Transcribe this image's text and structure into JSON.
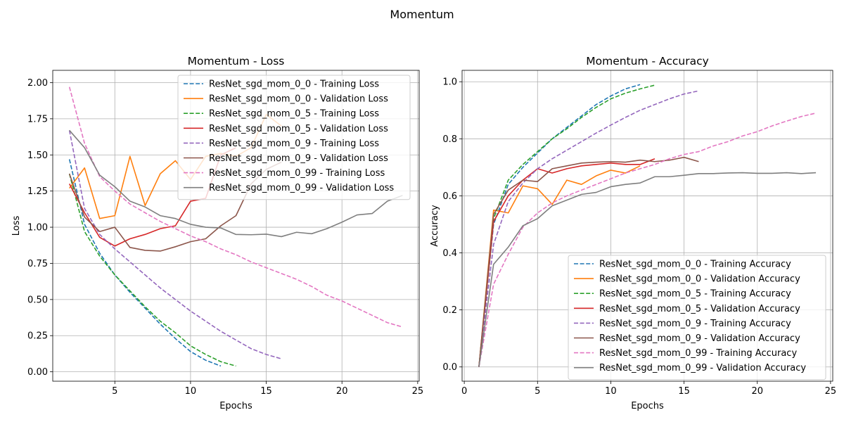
{
  "suptitle": "Momentum",
  "colors": {
    "blue": "#1f77b4",
    "orange": "#ff7f0e",
    "green": "#2ca02c",
    "red": "#d62728",
    "purple": "#9467bd",
    "brown": "#8c564b",
    "pink": "#e377c2",
    "gray": "#7f7f7f"
  },
  "chart_data": [
    {
      "type": "line",
      "title": "Momentum - Loss",
      "xlabel": "Epochs",
      "ylabel": "Loss",
      "xlim": [
        0.9,
        25.1
      ],
      "ylim": [
        -0.065,
        2.085
      ],
      "xticks": [
        5,
        10,
        15,
        20,
        25
      ],
      "xtick_labels": [
        "5",
        "10",
        "15",
        "20",
        "25"
      ],
      "yticks": [
        0.0,
        0.25,
        0.5,
        0.75,
        1.0,
        1.25,
        1.5,
        1.75,
        2.0
      ],
      "ytick_labels": [
        "0.00",
        "0.25",
        "0.50",
        "0.75",
        "1.00",
        "1.25",
        "1.50",
        "1.75",
        "2.00"
      ],
      "grid": true,
      "legend_position": "upper-right",
      "series": [
        {
          "name": "ResNet_sgd_mom_0_0 - Training Loss",
          "color": "blue",
          "dash": true,
          "x": [
            2,
            3,
            4,
            5,
            6,
            7,
            8,
            9,
            10,
            11,
            12
          ],
          "y": [
            1.47,
            1.02,
            0.82,
            0.67,
            0.55,
            0.44,
            0.33,
            0.23,
            0.14,
            0.08,
            0.04
          ]
        },
        {
          "name": "ResNet_sgd_mom_0_0 - Validation Loss",
          "color": "orange",
          "dash": false,
          "x": [
            2,
            3,
            4,
            5,
            6,
            7,
            8,
            9,
            10,
            11,
            12,
            13,
            14,
            15,
            16
          ],
          "y": [
            1.27,
            1.41,
            1.06,
            1.08,
            1.49,
            1.15,
            1.37,
            1.46,
            1.33,
            1.49,
            1.51,
            1.49,
            1.55,
            1.78,
            1.7
          ]
        },
        {
          "name": "ResNet_sgd_mom_0_5 - Training Loss",
          "color": "green",
          "dash": true,
          "x": [
            2,
            3,
            4,
            5,
            6,
            7,
            8,
            9,
            10,
            11,
            12,
            13
          ],
          "y": [
            1.37,
            0.97,
            0.8,
            0.67,
            0.56,
            0.45,
            0.35,
            0.27,
            0.18,
            0.12,
            0.07,
            0.04
          ]
        },
        {
          "name": "ResNet_sgd_mom_0_5 - Validation Loss",
          "color": "red",
          "dash": false,
          "x": [
            2,
            3,
            4,
            5,
            6,
            7,
            8,
            9,
            10,
            11,
            12,
            13
          ],
          "y": [
            1.3,
            1.1,
            0.93,
            0.87,
            0.92,
            0.95,
            0.99,
            1.01,
            1.18,
            1.2,
            1.5,
            1.55
          ]
        },
        {
          "name": "ResNet_sgd_mom_0_9 - Training Loss",
          "color": "purple",
          "dash": true,
          "x": [
            2,
            3,
            4,
            5,
            6,
            7,
            8,
            9,
            10,
            11,
            12,
            13,
            14,
            15,
            16
          ],
          "y": [
            1.67,
            1.13,
            0.95,
            0.85,
            0.76,
            0.67,
            0.58,
            0.5,
            0.42,
            0.35,
            0.28,
            0.22,
            0.16,
            0.12,
            0.09
          ]
        },
        {
          "name": "ResNet_sgd_mom_0_9 - Validation Loss",
          "color": "brown",
          "dash": false,
          "x": [
            2,
            3,
            4,
            5,
            6,
            7,
            8,
            9,
            10,
            11,
            12,
            13,
            14,
            15,
            16
          ],
          "y": [
            1.37,
            1.07,
            0.97,
            1.0,
            0.86,
            0.84,
            0.835,
            0.865,
            0.9,
            0.92,
            1.01,
            1.08,
            1.3,
            1.4,
            1.45
          ]
        },
        {
          "name": "ResNet_sgd_mom_0_99 - Training Loss",
          "color": "pink",
          "dash": true,
          "x": [
            2,
            3,
            4,
            5,
            6,
            7,
            8,
            9,
            10,
            11,
            12,
            13,
            14,
            15,
            16,
            17,
            18,
            19,
            20,
            21,
            22,
            23,
            24
          ],
          "y": [
            1.97,
            1.58,
            1.35,
            1.25,
            1.16,
            1.1,
            1.04,
            0.99,
            0.94,
            0.9,
            0.85,
            0.81,
            0.76,
            0.72,
            0.68,
            0.64,
            0.59,
            0.53,
            0.49,
            0.44,
            0.39,
            0.34,
            0.31
          ]
        },
        {
          "name": "ResNet_sgd_mom_0_99 - Validation Loss",
          "color": "gray",
          "dash": false,
          "x": [
            2,
            3,
            4,
            5,
            6,
            7,
            8,
            9,
            10,
            11,
            12,
            13,
            14,
            15,
            16,
            17,
            18,
            19,
            20,
            21,
            22,
            23,
            24
          ],
          "y": [
            1.67,
            1.55,
            1.36,
            1.28,
            1.18,
            1.14,
            1.08,
            1.06,
            1.02,
            1.0,
            0.995,
            0.95,
            0.948,
            0.952,
            0.935,
            0.965,
            0.955,
            0.99,
            1.035,
            1.085,
            1.095,
            1.18,
            1.22
          ]
        }
      ]
    },
    {
      "type": "line",
      "title": "Momentum - Accuracy",
      "xlabel": "Epochs",
      "ylabel": "Accuracy",
      "xlim": [
        -0.15,
        25.15
      ],
      "ylim": [
        -0.05,
        1.04
      ],
      "xticks": [
        0,
        5,
        10,
        15,
        20,
        25
      ],
      "xtick_labels": [
        "0",
        "5",
        "10",
        "15",
        "20",
        "25"
      ],
      "yticks": [
        0.0,
        0.2,
        0.4,
        0.6,
        0.8,
        1.0
      ],
      "ytick_labels": [
        "0.0",
        "0.2",
        "0.4",
        "0.6",
        "0.8",
        "1.0"
      ],
      "grid": true,
      "legend_position": "lower-right",
      "series": [
        {
          "name": "ResNet_sgd_mom_0_0 - Training Accuracy",
          "color": "blue",
          "dash": true,
          "x": [
            1,
            2,
            3,
            4,
            5,
            6,
            7,
            8,
            9,
            10,
            11,
            12
          ],
          "y": [
            0,
            0.5,
            0.64,
            0.7,
            0.75,
            0.8,
            0.84,
            0.88,
            0.92,
            0.95,
            0.975,
            0.99
          ]
        },
        {
          "name": "ResNet_sgd_mom_0_0 - Validation Accuracy",
          "color": "orange",
          "dash": false,
          "x": [
            1,
            2,
            3,
            4,
            5,
            6,
            7,
            8,
            9,
            10,
            11,
            12
          ],
          "y": [
            0,
            0.55,
            0.54,
            0.635,
            0.625,
            0.57,
            0.655,
            0.64,
            0.67,
            0.69,
            0.68,
            0.705
          ]
        },
        {
          "name": "ResNet_sgd_mom_0_5 - Training Accuracy",
          "color": "green",
          "dash": true,
          "x": [
            1,
            2,
            3,
            4,
            5,
            6,
            7,
            8,
            9,
            10,
            11,
            12,
            13
          ],
          "y": [
            0,
            0.52,
            0.655,
            0.71,
            0.755,
            0.8,
            0.835,
            0.875,
            0.91,
            0.94,
            0.96,
            0.975,
            0.988
          ]
        },
        {
          "name": "ResNet_sgd_mom_0_5 - Validation Accuracy",
          "color": "red",
          "dash": false,
          "x": [
            1,
            2,
            3,
            4,
            5,
            6,
            7,
            8,
            9,
            10,
            11,
            12,
            13
          ],
          "y": [
            0,
            0.51,
            0.6,
            0.655,
            0.695,
            0.68,
            0.695,
            0.705,
            0.71,
            0.715,
            0.71,
            0.71,
            0.73
          ]
        },
        {
          "name": "ResNet_sgd_mom_0_9 - Training Accuracy",
          "color": "purple",
          "dash": true,
          "x": [
            1,
            2,
            3,
            4,
            5,
            6,
            7,
            8,
            9,
            10,
            11,
            12,
            13,
            14,
            15,
            16
          ],
          "y": [
            0,
            0.43,
            0.58,
            0.645,
            0.695,
            0.73,
            0.76,
            0.79,
            0.82,
            0.848,
            0.875,
            0.9,
            0.92,
            0.94,
            0.957,
            0.968
          ]
        },
        {
          "name": "ResNet_sgd_mom_0_9 - Validation Accuracy",
          "color": "brown",
          "dash": false,
          "x": [
            1,
            2,
            3,
            4,
            5,
            6,
            7,
            8,
            9,
            10,
            11,
            12,
            13,
            14,
            15,
            16
          ],
          "y": [
            0,
            0.535,
            0.62,
            0.655,
            0.65,
            0.695,
            0.705,
            0.715,
            0.718,
            0.72,
            0.718,
            0.725,
            0.72,
            0.725,
            0.735,
            0.72
          ]
        },
        {
          "name": "ResNet_sgd_mom_0_99 - Training Accuracy",
          "color": "pink",
          "dash": true,
          "x": [
            1,
            2,
            3,
            4,
            5,
            6,
            7,
            8,
            9,
            10,
            11,
            12,
            13,
            14,
            15,
            16,
            17,
            18,
            19,
            20,
            21,
            22,
            23,
            24
          ],
          "y": [
            0,
            0.29,
            0.395,
            0.49,
            0.54,
            0.575,
            0.6,
            0.62,
            0.64,
            0.66,
            0.68,
            0.695,
            0.71,
            0.73,
            0.745,
            0.755,
            0.775,
            0.79,
            0.81,
            0.825,
            0.845,
            0.862,
            0.878,
            0.89
          ]
        },
        {
          "name": "ResNet_sgd_mom_0_99 - Validation Accuracy",
          "color": "gray",
          "dash": false,
          "x": [
            1,
            2,
            3,
            4,
            5,
            6,
            7,
            8,
            9,
            10,
            11,
            12,
            13,
            14,
            15,
            16,
            17,
            18,
            19,
            20,
            21,
            22,
            23,
            24
          ],
          "y": [
            0,
            0.36,
            0.42,
            0.495,
            0.52,
            0.565,
            0.585,
            0.605,
            0.612,
            0.632,
            0.64,
            0.645,
            0.667,
            0.667,
            0.672,
            0.678,
            0.678,
            0.68,
            0.681,
            0.679,
            0.679,
            0.681,
            0.678,
            0.681
          ]
        }
      ]
    }
  ]
}
